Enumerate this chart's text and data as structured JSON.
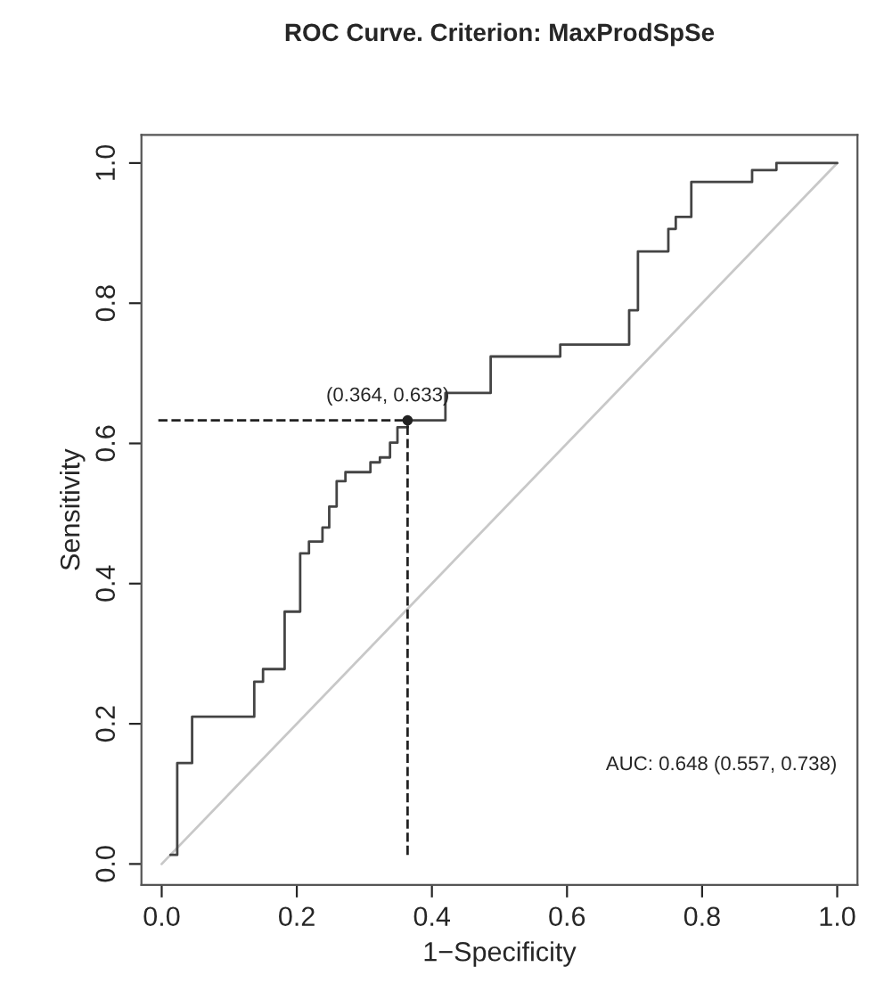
{
  "chart_data": {
    "type": "line",
    "title": "ROC Curve. Criterion: MaxProdSpSe",
    "xlabel": "1−Specificity",
    "ylabel": "Sensitivity",
    "xlim": [
      -0.03,
      1.03
    ],
    "ylim": [
      -0.03,
      1.04
    ],
    "xticks": [
      {
        "value": 0,
        "label": "0.0"
      },
      0.2,
      0.4,
      0.6,
      0.8,
      {
        "value": 1,
        "label": "1.0"
      }
    ],
    "yticks": [
      {
        "value": 0,
        "label": "0.0"
      },
      0.2,
      0.4,
      0.6,
      0.8,
      {
        "value": 1,
        "label": "1.0"
      }
    ],
    "grid": false,
    "legend": false,
    "series": [
      {
        "color": "#c8c8c8",
        "line_style": "solid",
        "marker": "none",
        "x": [
          0,
          1
        ],
        "values": [
          0,
          1
        ]
      },
      {
        "color": "#444444",
        "line_style": "solid",
        "marker": "none",
        "x": [
          0.013,
          0.023,
          0.023,
          0.045,
          0.045,
          0.137,
          0.137,
          0.15,
          0.15,
          0.182,
          0.182,
          0.205,
          0.205,
          0.218,
          0.218,
          0.238,
          0.238,
          0.248,
          0.248,
          0.259,
          0.259,
          0.272,
          0.272,
          0.309,
          0.309,
          0.323,
          0.323,
          0.338,
          0.338,
          0.349,
          0.349,
          0.364,
          0.364,
          0.42,
          0.42,
          0.487,
          0.487,
          0.59,
          0.59,
          0.692,
          0.692,
          0.705,
          0.705,
          0.75,
          0.75,
          0.761,
          0.761,
          0.784,
          0.784,
          0.874,
          0.874,
          0.91,
          0.91,
          1.0
        ],
        "values": [
          0.013,
          0.013,
          0.144,
          0.144,
          0.21,
          0.21,
          0.26,
          0.26,
          0.278,
          0.278,
          0.36,
          0.36,
          0.443,
          0.443,
          0.46,
          0.46,
          0.48,
          0.48,
          0.51,
          0.51,
          0.546,
          0.546,
          0.559,
          0.559,
          0.573,
          0.573,
          0.58,
          0.58,
          0.601,
          0.601,
          0.623,
          0.623,
          0.633,
          0.633,
          0.672,
          0.672,
          0.724,
          0.724,
          0.741,
          0.741,
          0.79,
          0.79,
          0.874,
          0.874,
          0.906,
          0.906,
          0.923,
          0.923,
          0.973,
          0.973,
          0.99,
          0.99,
          1.0,
          1.0
        ]
      },
      {
        "color": "#222222",
        "line_style": "dashed",
        "marker": "none",
        "x": [
          -0.005,
          0.364
        ],
        "values": [
          0.633,
          0.633
        ]
      },
      {
        "color": "#222222",
        "line_style": "dashed",
        "marker": "none",
        "x": [
          0.364,
          0.364
        ],
        "values": [
          0.013,
          0.633
        ]
      },
      {
        "type": "scatter",
        "color": "#222222",
        "marker": "circle",
        "x": [
          0.364
        ],
        "values": [
          0.633
        ]
      }
    ],
    "annotations": [
      {
        "text": "(0.364, 0.633)",
        "x": 0.364,
        "y": 0.633
      },
      "AUC: 0.648 (0.557, 0.738)"
    ]
  }
}
